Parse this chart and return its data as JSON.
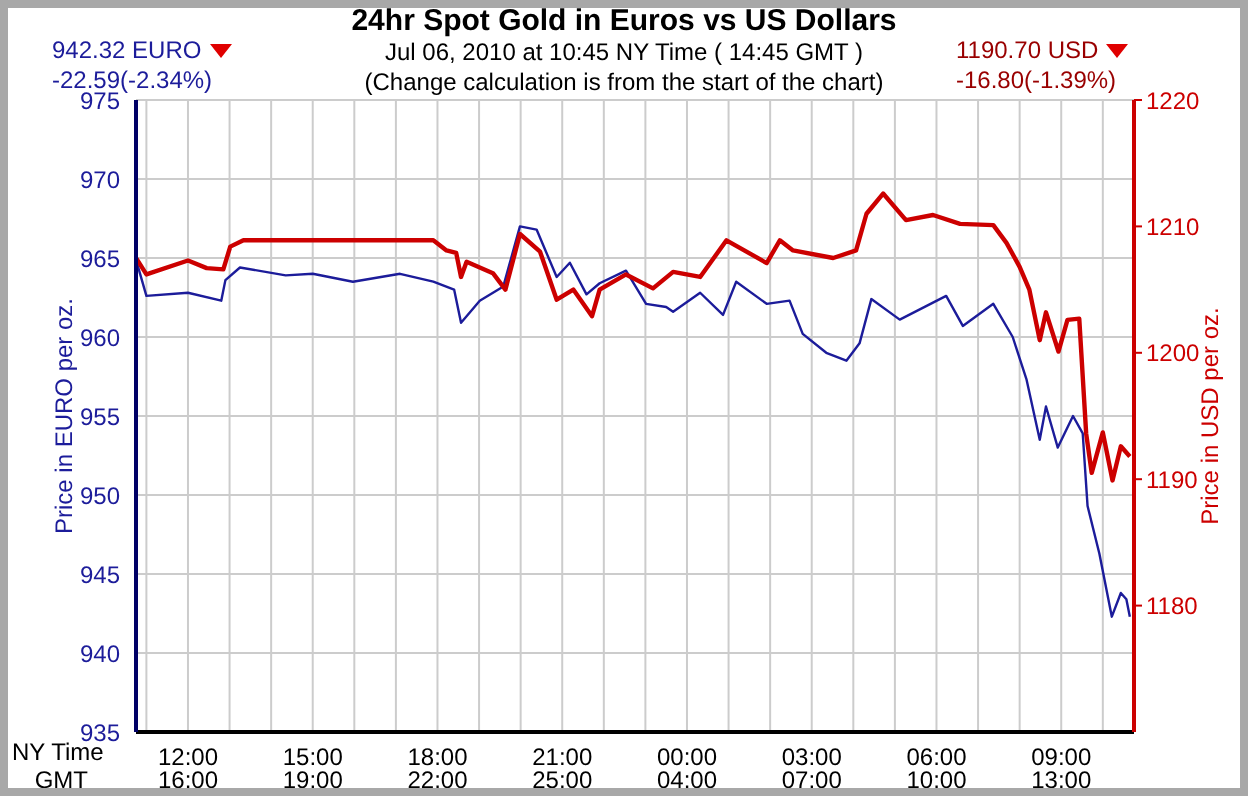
{
  "chart_data": {
    "type": "line",
    "title": "24hr Spot Gold in Euros vs US Dollars",
    "subtitle": "Jul 06, 2010 at 10:45 NY Time ( 14:45 GMT )",
    "annotations": [
      "942.32 EURO",
      "-22.59(-2.34%)",
      "1190.70 USD",
      "-16.80(-1.39%)",
      "(Change calculation is from the start of the chart)"
    ],
    "xlabel": "NY Time",
    "x2label": "GMT",
    "ylabel": "Price in EURO per oz.",
    "y2label": "Price in USD per oz.",
    "xlim": [
      "2010-07-05T10:45",
      "2010-07-06T10:45"
    ],
    "xticks": [
      {
        "value": "2010-07-05T11:00",
        "label": null
      },
      {
        "value": "2010-07-05T12:00",
        "label": "12:00"
      },
      {
        "value": "2010-07-05T13:00",
        "label": null
      },
      {
        "value": "2010-07-05T14:00",
        "label": null
      },
      {
        "value": "2010-07-05T15:00",
        "label": "15:00"
      },
      {
        "value": "2010-07-05T16:00",
        "label": null
      },
      {
        "value": "2010-07-05T17:00",
        "label": null
      },
      {
        "value": "2010-07-05T18:00",
        "label": "18:00"
      },
      {
        "value": "2010-07-05T19:00",
        "label": null
      },
      {
        "value": "2010-07-05T20:00",
        "label": null
      },
      {
        "value": "2010-07-05T21:00",
        "label": "21:00"
      },
      {
        "value": "2010-07-05T22:00",
        "label": null
      },
      {
        "value": "2010-07-05T23:00",
        "label": null
      },
      {
        "value": "2010-07-06T00:00",
        "label": "00:00"
      },
      {
        "value": "2010-07-06T01:00",
        "label": null
      },
      {
        "value": "2010-07-06T02:00",
        "label": null
      },
      {
        "value": "2010-07-06T03:00",
        "label": "03:00"
      },
      {
        "value": "2010-07-06T04:00",
        "label": null
      },
      {
        "value": "2010-07-06T05:00",
        "label": null
      },
      {
        "value": "2010-07-06T06:00",
        "label": "06:00"
      },
      {
        "value": "2010-07-06T07:00",
        "label": null
      },
      {
        "value": "2010-07-06T08:00",
        "label": null
      },
      {
        "value": "2010-07-06T09:00",
        "label": "09:00"
      },
      {
        "value": "2010-07-06T10:00",
        "label": null
      }
    ],
    "x2lim": [
      "2010-07-05T14:45",
      "2010-07-06T14:45"
    ],
    "x2ticks": [
      {
        "value": "2010-07-05T16:00",
        "label": "16:00"
      },
      {
        "value": "2010-07-05T19:00",
        "label": "19:00"
      },
      {
        "value": "2010-07-05T22:00",
        "label": "22:00"
      },
      {
        "value": "2010-07-06T01:00",
        "label": "25:00"
      },
      {
        "value": "2010-07-06T04:00",
        "label": "04:00"
      },
      {
        "value": "2010-07-06T07:00",
        "label": "07:00"
      },
      {
        "value": "2010-07-06T10:00",
        "label": "10:00"
      },
      {
        "value": "2010-07-06T13:00",
        "label": "13:00"
      }
    ],
    "ylim": [
      935,
      975
    ],
    "yticks": [
      935,
      940,
      945,
      950,
      955,
      960,
      965,
      970,
      975
    ],
    "y2lim": [
      1170,
      1220
    ],
    "y2ticks": [
      1180,
      1190,
      1200,
      1210,
      1220
    ],
    "grid": true,
    "legend": false,
    "marker": "none",
    "line_style": "solid",
    "series": [
      {
        "color": "#1c1c9a",
        "x": [
          "2010-07-05T10:45",
          "2010-07-05T11:00",
          "2010-07-05T12:00",
          "2010-07-05T12:48",
          "2010-07-05T12:54",
          "2010-07-05T13:15",
          "2010-07-05T14:21",
          "2010-07-05T15:00",
          "2010-07-05T15:58",
          "2010-07-05T17:06",
          "2010-07-05T17:54",
          "2010-07-05T18:24",
          "2010-07-05T18:34",
          "2010-07-05T19:01",
          "2010-07-05T19:35",
          "2010-07-05T19:59",
          "2010-07-05T20:23",
          "2010-07-05T20:52",
          "2010-07-05T21:11",
          "2010-07-05T21:35",
          "2010-07-05T21:54",
          "2010-07-05T22:32",
          "2010-07-05T23:01",
          "2010-07-05T23:30",
          "2010-07-05T23:40",
          "2010-07-06T00:19",
          "2010-07-06T00:52",
          "2010-07-06T01:11",
          "2010-07-06T01:55",
          "2010-07-06T02:28",
          "2010-07-06T02:47",
          "2010-07-06T03:21",
          "2010-07-06T03:50",
          "2010-07-06T04:09",
          "2010-07-06T04:26",
          "2010-07-06T05:07",
          "2010-07-06T06:14",
          "2010-07-06T06:38",
          "2010-07-06T07:22",
          "2010-07-06T07:50",
          "2010-07-06T08:10",
          "2010-07-06T08:29",
          "2010-07-06T08:38",
          "2010-07-06T08:55",
          "2010-07-06T09:17",
          "2010-07-06T09:31",
          "2010-07-06T09:38",
          "2010-07-06T09:55",
          "2010-07-06T10:13",
          "2010-07-06T10:26",
          "2010-07-06T10:34",
          "2010-07-06T10:39"
        ],
        "values": [
          964.9,
          962.6,
          962.8,
          962.3,
          963.6,
          964.4,
          963.9,
          964.0,
          963.5,
          964.0,
          963.5,
          963.0,
          960.9,
          962.3,
          963.2,
          967.0,
          966.8,
          963.8,
          964.7,
          962.7,
          963.4,
          964.2,
          962.1,
          961.9,
          961.6,
          962.8,
          961.4,
          963.5,
          962.1,
          962.3,
          960.2,
          959.0,
          958.5,
          959.6,
          962.4,
          961.1,
          962.6,
          960.7,
          962.1,
          960.0,
          957.3,
          953.5,
          955.6,
          953.0,
          955.0,
          953.9,
          949.3,
          946.3,
          942.3,
          943.8,
          943.4,
          942.3
        ]
      },
      {
        "color": "#cc0000",
        "axis": "y2",
        "x": [
          "2010-07-05T10:45",
          "2010-07-05T11:00",
          "2010-07-05T12:00",
          "2010-07-05T12:27",
          "2010-07-05T12:51",
          "2010-07-05T13:01",
          "2010-07-05T13:20",
          "2010-07-05T17:54",
          "2010-07-05T18:13",
          "2010-07-05T18:27",
          "2010-07-05T18:34",
          "2010-07-05T18:42",
          "2010-07-05T19:20",
          "2010-07-05T19:38",
          "2010-07-05T19:59",
          "2010-07-05T20:28",
          "2010-07-05T20:52",
          "2010-07-05T21:16",
          "2010-07-05T21:43",
          "2010-07-05T21:54",
          "2010-07-05T22:32",
          "2010-07-05T23:11",
          "2010-07-05T23:40",
          "2010-07-06T00:19",
          "2010-07-06T00:57",
          "2010-07-06T01:55",
          "2010-07-06T02:14",
          "2010-07-06T02:33",
          "2010-07-06T03:31",
          "2010-07-06T04:04",
          "2010-07-06T04:19",
          "2010-07-06T04:43",
          "2010-07-06T05:16",
          "2010-07-06T05:55",
          "2010-07-06T06:34",
          "2010-07-06T07:22",
          "2010-07-06T07:41",
          "2010-07-06T08:00",
          "2010-07-06T08:14",
          "2010-07-06T08:29",
          "2010-07-06T08:38",
          "2010-07-06T08:56",
          "2010-07-06T09:09",
          "2010-07-06T09:26",
          "2010-07-06T09:36",
          "2010-07-06T09:44",
          "2010-07-06T10:00",
          "2010-07-06T10:14",
          "2010-07-06T10:26",
          "2010-07-06T10:39"
        ],
        "values": [
          1207.5,
          1206.2,
          1207.3,
          1206.7,
          1206.6,
          1208.4,
          1208.9,
          1208.9,
          1208.1,
          1207.9,
          1206.0,
          1207.2,
          1206.3,
          1205.0,
          1209.4,
          1208.0,
          1204.2,
          1205.0,
          1202.9,
          1205.0,
          1206.2,
          1205.1,
          1206.4,
          1206.0,
          1208.9,
          1207.1,
          1208.9,
          1208.1,
          1207.5,
          1208.1,
          1211.0,
          1212.6,
          1210.5,
          1210.9,
          1210.2,
          1210.1,
          1208.7,
          1206.8,
          1205.0,
          1201.0,
          1203.2,
          1200.1,
          1202.6,
          1202.7,
          1193.6,
          1190.5,
          1193.7,
          1189.9,
          1192.6,
          1191.8
        ]
      }
    ]
  }
}
